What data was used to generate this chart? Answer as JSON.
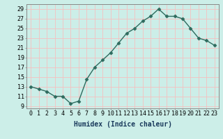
{
  "x": [
    0,
    1,
    2,
    3,
    4,
    5,
    6,
    7,
    8,
    9,
    10,
    11,
    12,
    13,
    14,
    15,
    16,
    17,
    18,
    19,
    20,
    21,
    22,
    23
  ],
  "y": [
    13,
    12.5,
    12,
    11,
    11,
    9.5,
    10,
    14.5,
    17,
    18.5,
    20,
    22,
    24,
    25,
    26.5,
    27.5,
    29,
    27.5,
    27.5,
    27,
    25,
    23,
    22.5,
    21.5
  ],
  "line_color": "#2e6b5e",
  "marker": "D",
  "marker_size": 2.5,
  "bg_color": "#cceee8",
  "grid_major_color": "#f5c0c0",
  "grid_minor_color": "#e8f5f5",
  "xlabel": "Humidex (Indice chaleur)",
  "xlim": [
    -0.5,
    23.5
  ],
  "ylim": [
    8.5,
    30
  ],
  "yticks": [
    9,
    11,
    13,
    15,
    17,
    19,
    21,
    23,
    25,
    27,
    29
  ],
  "xticks": [
    0,
    1,
    2,
    3,
    4,
    5,
    6,
    7,
    8,
    9,
    10,
    11,
    12,
    13,
    14,
    15,
    16,
    17,
    18,
    19,
    20,
    21,
    22,
    23
  ],
  "xlabel_fontsize": 7,
  "tick_fontsize": 6,
  "line_width": 1.0
}
